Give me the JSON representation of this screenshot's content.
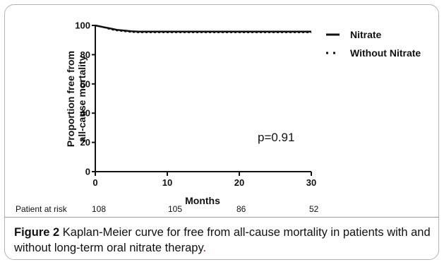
{
  "chart_data": {
    "type": "line",
    "title": "",
    "xlabel": "Months",
    "ylabel_line1": "Proportion free from",
    "ylabel_line2": "all-cause mortality",
    "xlim": [
      0,
      30
    ],
    "ylim": [
      0,
      100
    ],
    "xticks": [
      0,
      10,
      20,
      30
    ],
    "yticks": [
      0,
      20,
      40,
      60,
      80,
      100
    ],
    "grid": false,
    "legend_position": "top-right",
    "series": [
      {
        "name": "Nitrate",
        "style": "solid",
        "x": [
          0,
          1,
          2,
          3,
          4,
          5,
          6,
          8,
          30
        ],
        "y": [
          100,
          99,
          98,
          97,
          96.5,
          96,
          95.8,
          95.8,
          95.8
        ]
      },
      {
        "name": "Without Nitrate",
        "style": "dotted",
        "x": [
          0,
          1,
          2,
          3,
          4,
          5,
          6,
          30
        ],
        "y": [
          100,
          99,
          97.5,
          96.5,
          96,
          95.5,
          95.2,
          95.2
        ]
      }
    ],
    "annotation": "p=0.91",
    "risk_table": {
      "label": "Patient at risk",
      "values": [
        "108",
        "105",
        "86",
        "52"
      ]
    }
  },
  "caption": {
    "figure_label": "Figure 2",
    "text": " Kaplan-Meier curve for free from all-cause mortality in patients with and without long-term oral nitrate therapy",
    "period": "."
  }
}
